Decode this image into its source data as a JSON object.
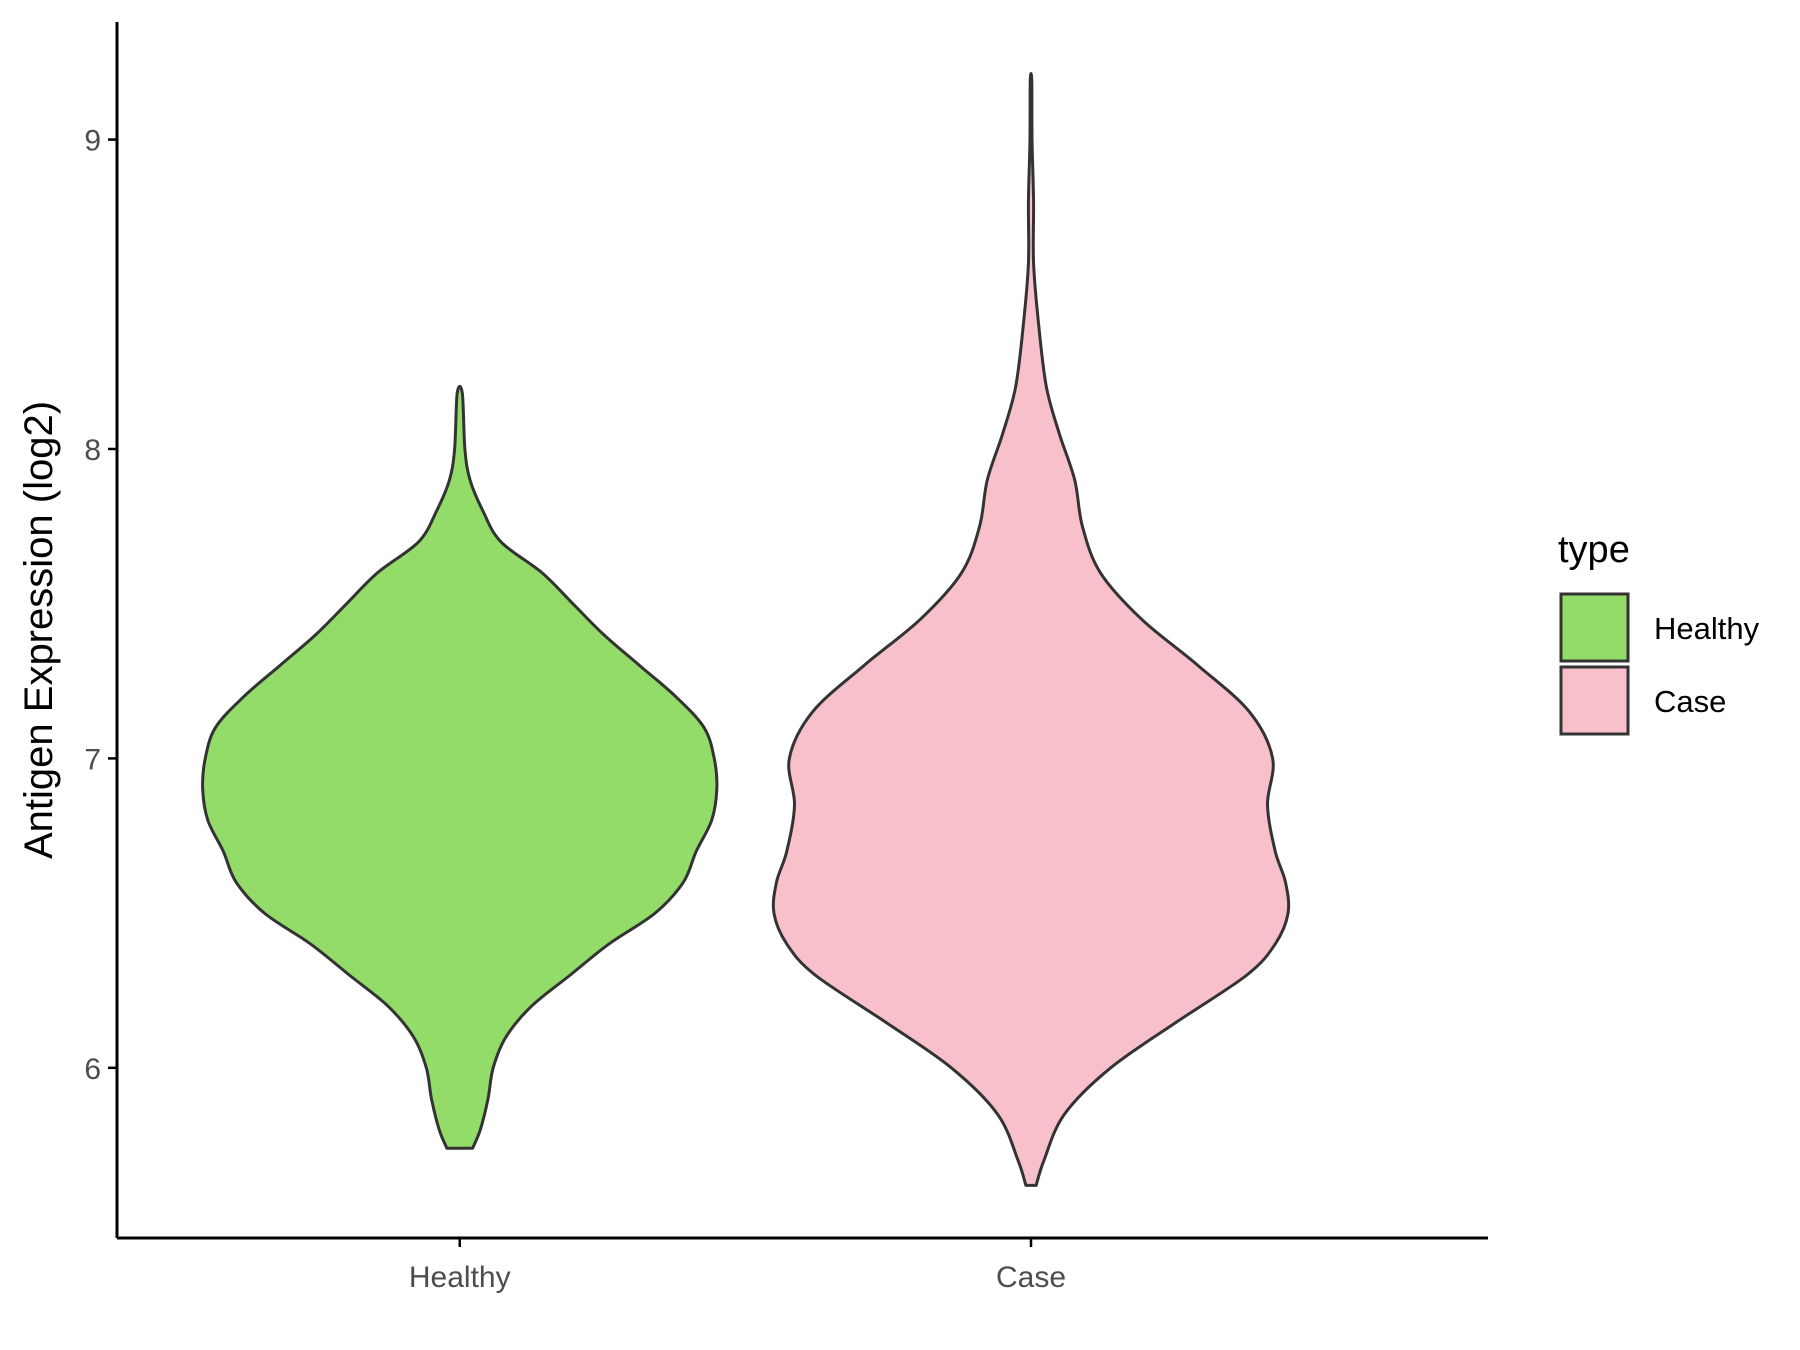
{
  "chart_data": {
    "type": "violin",
    "title": "",
    "xlabel": "",
    "ylabel": "Antigen Expression (log2)",
    "categories": [
      "Healthy",
      "Case"
    ],
    "y_ticks": [
      "6",
      "7",
      "8",
      "9"
    ],
    "ylim": [
      5.45,
      9.38
    ],
    "grid": false,
    "legend": {
      "title": "type",
      "position": "right",
      "entries": [
        {
          "label": "Healthy",
          "color": "#93dc6a"
        },
        {
          "label": "Case",
          "color": "#f7c0cb"
        }
      ]
    },
    "series": [
      {
        "name": "Healthy",
        "color": "#93dc6a",
        "y_min": 5.74,
        "y_max": 8.18,
        "density": [
          [
            5.74,
            0.05
          ],
          [
            5.8,
            0.08
          ],
          [
            5.9,
            0.11
          ],
          [
            6.0,
            0.13
          ],
          [
            6.1,
            0.18
          ],
          [
            6.2,
            0.28
          ],
          [
            6.3,
            0.43
          ],
          [
            6.4,
            0.58
          ],
          [
            6.5,
            0.76
          ],
          [
            6.6,
            0.87
          ],
          [
            6.7,
            0.92
          ],
          [
            6.8,
            0.98
          ],
          [
            6.9,
            1.0
          ],
          [
            7.0,
            0.99
          ],
          [
            7.1,
            0.95
          ],
          [
            7.2,
            0.84
          ],
          [
            7.3,
            0.7
          ],
          [
            7.4,
            0.56
          ],
          [
            7.5,
            0.44
          ],
          [
            7.6,
            0.32
          ],
          [
            7.7,
            0.16
          ],
          [
            7.8,
            0.09
          ],
          [
            7.9,
            0.04
          ],
          [
            8.0,
            0.02
          ],
          [
            8.18,
            0.01
          ]
        ]
      },
      {
        "name": "Case",
        "color": "#f7c0cb",
        "y_min": 5.62,
        "y_max": 9.19,
        "density": [
          [
            5.62,
            0.02
          ],
          [
            5.7,
            0.05
          ],
          [
            5.85,
            0.13
          ],
          [
            6.0,
            0.31
          ],
          [
            6.15,
            0.57
          ],
          [
            6.3,
            0.84
          ],
          [
            6.4,
            0.95
          ],
          [
            6.5,
            1.0
          ],
          [
            6.6,
            0.99
          ],
          [
            6.7,
            0.95
          ],
          [
            6.85,
            0.92
          ],
          [
            7.0,
            0.94
          ],
          [
            7.15,
            0.85
          ],
          [
            7.3,
            0.65
          ],
          [
            7.45,
            0.43
          ],
          [
            7.6,
            0.27
          ],
          [
            7.75,
            0.2
          ],
          [
            7.9,
            0.17
          ],
          [
            8.05,
            0.11
          ],
          [
            8.2,
            0.06
          ],
          [
            8.4,
            0.03
          ],
          [
            8.6,
            0.01
          ],
          [
            8.8,
            0.01
          ],
          [
            9.0,
            0.004
          ],
          [
            9.19,
            0.003
          ]
        ]
      }
    ]
  }
}
